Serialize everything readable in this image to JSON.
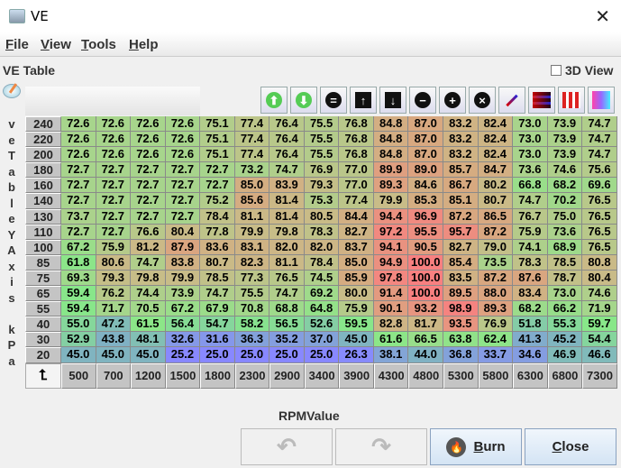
{
  "window": {
    "title": "VE",
    "close_icon": "close-icon"
  },
  "menu": [
    {
      "label": "File",
      "mn": "F",
      "rest": "ile"
    },
    {
      "label": "View",
      "mn": "V",
      "rest": "iew"
    },
    {
      "label": "Tools",
      "mn": "T",
      "rest": "ools"
    },
    {
      "label": "Help",
      "mn": "H",
      "rest": "elp"
    }
  ],
  "panel": {
    "title": "VE Table",
    "view3d_label": "3D View",
    "view3d_checked": false
  },
  "toolbar": [
    "increase-arrow-icon",
    "decrease-arrow-icon",
    "set-equal-icon",
    "shift-up-icon",
    "shift-down-icon",
    "subtract-icon",
    "add-icon",
    "multiply-icon",
    "interpolate-icon",
    "interpolate-horizontal-icon",
    "interpolate-vertical-icon",
    "color-gradient-icon"
  ],
  "y_axis_label": "veTableYAxis kPa",
  "x_axis_label": "RPMValue",
  "table": {
    "y": [
      "240",
      "220",
      "200",
      "180",
      "160",
      "140",
      "130",
      "110",
      "100",
      "85",
      "75",
      "65",
      "55",
      "40",
      "30",
      "20"
    ],
    "x": [
      "500",
      "700",
      "1200",
      "1500",
      "1800",
      "2300",
      "2900",
      "3400",
      "3900",
      "4300",
      "4800",
      "5300",
      "5800",
      "6300",
      "6800",
      "7300"
    ],
    "rows": [
      [
        "72.6",
        "72.6",
        "72.6",
        "72.6",
        "75.1",
        "77.4",
        "76.4",
        "75.5",
        "76.8",
        "84.8",
        "87.0",
        "83.2",
        "82.4",
        "73.0",
        "73.9",
        "74.7"
      ],
      [
        "72.6",
        "72.6",
        "72.6",
        "72.6",
        "75.1",
        "77.4",
        "76.4",
        "75.5",
        "76.8",
        "84.8",
        "87.0",
        "83.2",
        "82.4",
        "73.0",
        "73.9",
        "74.7"
      ],
      [
        "72.6",
        "72.6",
        "72.6",
        "72.6",
        "75.1",
        "77.4",
        "76.4",
        "75.5",
        "76.8",
        "84.8",
        "87.0",
        "83.2",
        "82.4",
        "73.0",
        "73.9",
        "74.7"
      ],
      [
        "72.7",
        "72.7",
        "72.7",
        "72.7",
        "72.7",
        "73.2",
        "74.7",
        "76.9",
        "77.0",
        "89.9",
        "89.0",
        "85.7",
        "84.7",
        "73.6",
        "74.6",
        "75.6"
      ],
      [
        "72.7",
        "72.7",
        "72.7",
        "72.7",
        "72.7",
        "85.0",
        "83.9",
        "79.3",
        "77.0",
        "89.3",
        "84.6",
        "86.7",
        "80.2",
        "66.8",
        "68.2",
        "69.6"
      ],
      [
        "72.7",
        "72.7",
        "72.7",
        "72.7",
        "75.2",
        "85.6",
        "81.4",
        "75.3",
        "77.4",
        "79.9",
        "85.3",
        "85.1",
        "80.7",
        "74.7",
        "70.2",
        "76.5"
      ],
      [
        "73.7",
        "72.7",
        "72.7",
        "72.7",
        "78.4",
        "81.1",
        "81.4",
        "80.5",
        "84.4",
        "94.4",
        "96.9",
        "87.2",
        "86.5",
        "76.7",
        "75.0",
        "76.5"
      ],
      [
        "72.7",
        "72.7",
        "76.6",
        "80.4",
        "77.8",
        "79.9",
        "79.8",
        "78.3",
        "82.7",
        "97.2",
        "95.5",
        "95.7",
        "87.2",
        "75.9",
        "73.6",
        "76.5"
      ],
      [
        "67.2",
        "75.9",
        "81.2",
        "87.9",
        "83.6",
        "83.1",
        "82.0",
        "82.0",
        "83.7",
        "94.1",
        "90.5",
        "82.7",
        "79.0",
        "74.1",
        "68.9",
        "76.5"
      ],
      [
        "61.8",
        "80.6",
        "74.7",
        "83.8",
        "80.7",
        "82.3",
        "81.1",
        "78.4",
        "85.0",
        "94.9",
        "100.0",
        "85.4",
        "73.5",
        "78.3",
        "78.5",
        "80.8"
      ],
      [
        "69.3",
        "79.3",
        "79.8",
        "79.9",
        "78.5",
        "77.3",
        "76.5",
        "74.5",
        "85.9",
        "97.8",
        "100.0",
        "83.5",
        "87.2",
        "87.6",
        "78.7",
        "80.4"
      ],
      [
        "59.4",
        "76.2",
        "74.4",
        "73.9",
        "74.7",
        "75.5",
        "74.7",
        "69.2",
        "80.0",
        "91.4",
        "100.0",
        "89.5",
        "88.0",
        "83.4",
        "73.0",
        "74.6"
      ],
      [
        "59.4",
        "71.7",
        "70.5",
        "67.2",
        "67.9",
        "70.8",
        "68.8",
        "64.8",
        "75.9",
        "90.1",
        "93.2",
        "98.9",
        "89.3",
        "68.2",
        "66.2",
        "71.9"
      ],
      [
        "55.0",
        "47.2",
        "61.5",
        "56.4",
        "54.7",
        "58.2",
        "56.5",
        "52.6",
        "59.5",
        "82.8",
        "81.7",
        "93.5",
        "76.9",
        "51.8",
        "55.3",
        "59.7"
      ],
      [
        "52.9",
        "43.8",
        "48.1",
        "32.6",
        "31.6",
        "36.3",
        "35.2",
        "37.0",
        "45.0",
        "61.6",
        "66.5",
        "63.8",
        "62.4",
        "41.3",
        "45.2",
        "54.4"
      ],
      [
        "45.0",
        "45.0",
        "45.0",
        "25.2",
        "25.0",
        "25.0",
        "25.0",
        "25.0",
        "26.3",
        "38.1",
        "44.0",
        "36.8",
        "33.7",
        "34.6",
        "46.9",
        "46.6"
      ]
    ]
  },
  "buttons": {
    "undo_icon": "undo-icon",
    "redo_icon": "redo-icon",
    "burn": "Burn",
    "burn_mn": "B",
    "burn_rest": "urn",
    "close": "Close",
    "close_mn": "C",
    "close_rest": "lose"
  }
}
